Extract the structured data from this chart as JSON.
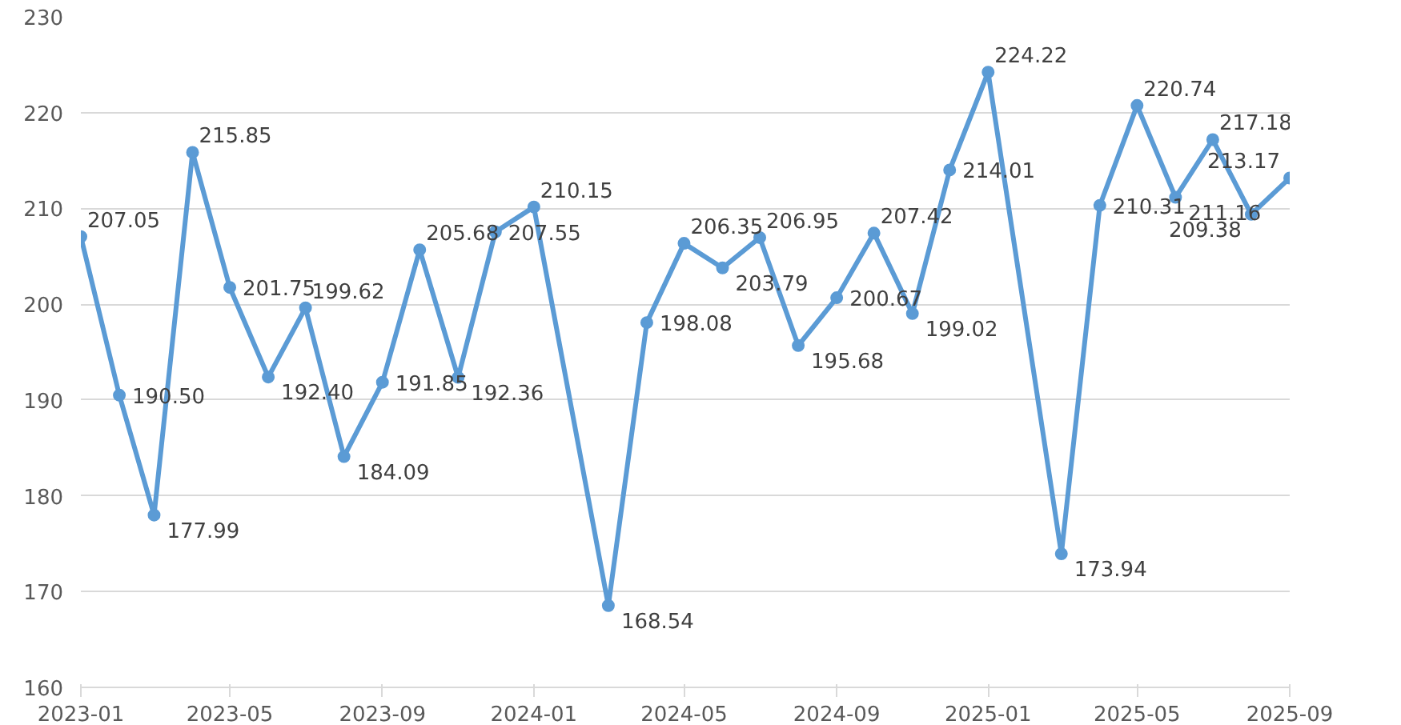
{
  "chart_data": {
    "type": "line",
    "x": [
      "2023-01",
      "2023-02",
      "2023-03",
      "2023-04",
      "2023-05",
      "2023-06",
      "2023-07",
      "2023-08",
      "2023-09",
      "2023-10",
      "2023-11",
      "2023-12",
      "2024-01",
      "2024-03",
      "2024-04",
      "2024-05",
      "2024-06",
      "2024-07",
      "2024-08",
      "2024-09",
      "2024-10",
      "2024-11",
      "2024-12",
      "2025-01",
      "2025-03",
      "2025-04",
      "2025-05",
      "2025-06",
      "2025-07",
      "2025-08",
      "2025-09"
    ],
    "series": [
      {
        "color": "#5b9bd5",
        "values": [
          207.05,
          190.5,
          177.99,
          215.85,
          201.75,
          192.4,
          199.62,
          184.09,
          191.85,
          205.68,
          192.36,
          207.55,
          210.15,
          168.54,
          198.08,
          206.35,
          203.79,
          206.95,
          195.68,
          200.67,
          207.42,
          199.02,
          214.01,
          224.22,
          173.94,
          210.31,
          220.74,
          211.16,
          217.18,
          209.38,
          213.17
        ]
      }
    ],
    "xlim": [
      "2023-01",
      "2025-09"
    ],
    "xticks": [
      "2023-01",
      "2023-05",
      "2023-09",
      "2024-01",
      "2024-05",
      "2024-09",
      "2025-01",
      "2025-05",
      "2025-09"
    ],
    "ylim": [
      160,
      230
    ],
    "yticks": [
      160,
      170,
      180,
      190,
      200,
      210,
      220,
      230
    ],
    "value_labels": [
      "207.05",
      "190.50",
      "177.99",
      "215.85",
      "201.75",
      "192.40",
      "199.62",
      "184.09",
      "191.85",
      "205.68",
      "192.36",
      "207.55",
      "210.15",
      "168.54",
      "198.08",
      "206.35",
      "203.79",
      "206.95",
      "195.68",
      "200.67",
      "207.42",
      "199.02",
      "214.01",
      "224.22",
      "173.94",
      "210.31",
      "220.74",
      "211.16",
      "217.18",
      "209.38",
      "213.17"
    ],
    "grid": "y",
    "marker": "circle",
    "line_style": "solid"
  }
}
